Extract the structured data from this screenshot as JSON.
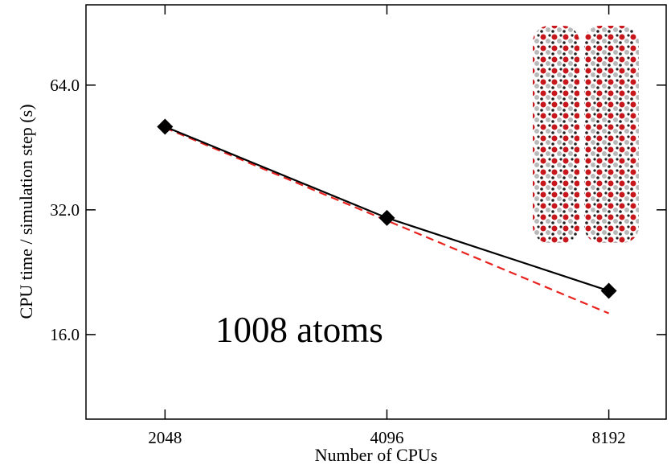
{
  "chart_data": {
    "type": "line",
    "x_label": "Number of CPUs",
    "y_label": "CPU time / simulation step (s)",
    "annotation": "1008 atoms",
    "log_x": true,
    "log_y": true,
    "xlim": [
      1600,
      9800
    ],
    "ylim": [
      10,
      100
    ],
    "xticks": [
      2048,
      4096,
      8192
    ],
    "yticks": [
      {
        "value": 16,
        "label": "16.0"
      },
      {
        "value": 32,
        "label": "32.0"
      },
      {
        "value": 64,
        "label": "64.0"
      }
    ],
    "series": [
      {
        "color": "#000000",
        "style": "solid",
        "marker": "diamond",
        "x": [
          2048,
          4096,
          8192
        ],
        "values": [
          50.8,
          30.6,
          20.4
        ]
      },
      {
        "color": "#e8231f",
        "style": "dashed",
        "marker": "none",
        "x": [
          2048,
          8192
        ],
        "values": [
          50.5,
          18.0
        ]
      }
    ]
  }
}
